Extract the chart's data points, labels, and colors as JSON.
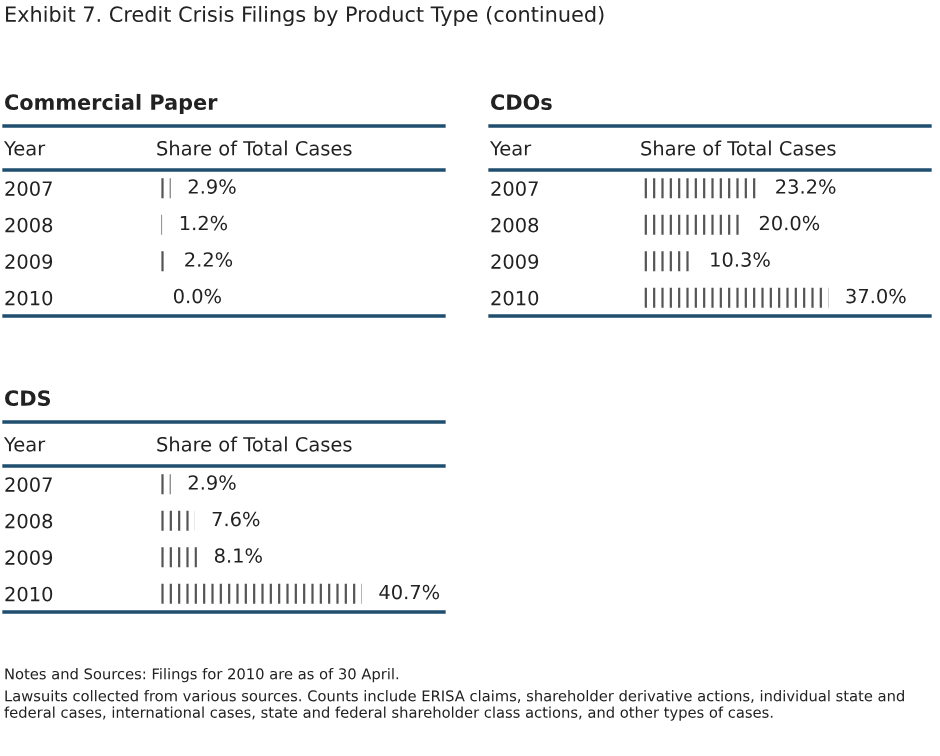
{
  "chart_data": [
    {
      "type": "other",
      "title": "Exhibit 7. Credit Crisis Filings by Product Type (continued)",
      "annotations": [
        "Notes and Sources: Filings for 2010 are as of 30 April.",
        "Lawsuits collected from various sources. Counts include ERISA claims, shareholder derivative actions, individual state and federal cases, international cases, state and federal shareholder class actions, and other types of cases."
      ]
    },
    {
      "type": "bar",
      "orientation": "horizontal",
      "title": "Commercial Paper",
      "ylabel": "Year",
      "xlabel": "Share of Total Cases",
      "categories": [
        "2007",
        "2008",
        "2009",
        "2010"
      ],
      "values": [
        2.9,
        1.2,
        2.2,
        0.0
      ],
      "value_labels": [
        "2.9%",
        "1.2%",
        "2.2%",
        "0.0%"
      ],
      "color": "#555555"
    },
    {
      "type": "bar",
      "orientation": "horizontal",
      "title": "CDOs",
      "ylabel": "Year",
      "xlabel": "Share of Total Cases",
      "categories": [
        "2007",
        "2008",
        "2009",
        "2010"
      ],
      "values": [
        23.2,
        20.0,
        10.3,
        37.0
      ],
      "value_labels": [
        "23.2%",
        "20.0%",
        "10.3%",
        "37.0%"
      ],
      "color": "#555555"
    },
    {
      "type": "bar",
      "orientation": "horizontal",
      "title": "CDS",
      "ylabel": "Year",
      "xlabel": "Share of Total Cases",
      "categories": [
        "2007",
        "2008",
        "2009",
        "2010"
      ],
      "values": [
        2.9,
        7.6,
        8.1,
        40.7
      ],
      "value_labels": [
        "2.9%",
        "7.6%",
        "8.1%",
        "40.7%"
      ],
      "color": "#555555"
    }
  ]
}
